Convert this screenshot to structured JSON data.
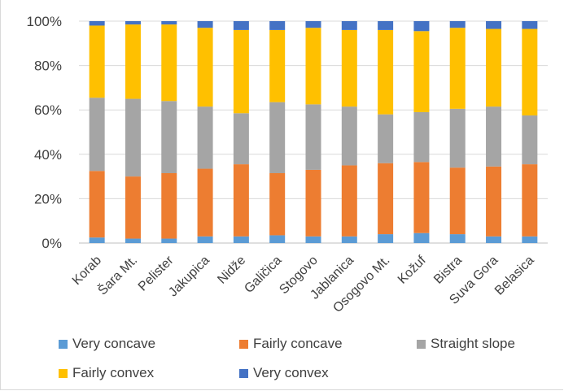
{
  "chart_data": {
    "type": "bar",
    "stacked": true,
    "percent": true,
    "categories": [
      "Korab",
      "Šara Mt.",
      "Pelister",
      "Jakupica",
      "Nidže",
      "Galičica",
      "Stogovo",
      "Jablanica",
      "Osogovo Mt.",
      "Kožuf",
      "Bistra",
      "Suva Gora",
      "Belasica"
    ],
    "series": [
      {
        "name": "Very concave",
        "color": "#5B9BD5",
        "values": [
          2.5,
          2,
          2,
          3,
          3,
          3.5,
          3,
          3,
          4,
          4.5,
          4,
          3,
          3
        ]
      },
      {
        "name": "Fairly concave",
        "color": "#ED7D31",
        "values": [
          30,
          28,
          29.5,
          30.5,
          32.5,
          28,
          30,
          32,
          32,
          32,
          30,
          31.5,
          32.5
        ]
      },
      {
        "name": "Straight slope",
        "color": "#A5A5A5",
        "values": [
          33,
          35,
          32.5,
          28,
          23,
          32,
          29.5,
          26.5,
          22,
          22.5,
          26.5,
          27,
          22
        ]
      },
      {
        "name": "Fairly convex",
        "color": "#FFC000",
        "values": [
          32.5,
          33.5,
          34.5,
          35.5,
          37.5,
          32.5,
          34.5,
          34.5,
          38,
          36.5,
          36.5,
          35,
          39
        ]
      },
      {
        "name": "Very convex",
        "color": "#4472C4",
        "values": [
          2,
          1.5,
          1.5,
          3,
          4,
          4,
          3,
          4,
          4,
          4.5,
          3,
          3.5,
          3.5
        ]
      }
    ],
    "y_ticks": [
      "0%",
      "20%",
      "40%",
      "60%",
      "80%",
      "100%"
    ],
    "ylim": [
      0,
      100
    ],
    "grid": true,
    "legend_position": "bottom"
  }
}
